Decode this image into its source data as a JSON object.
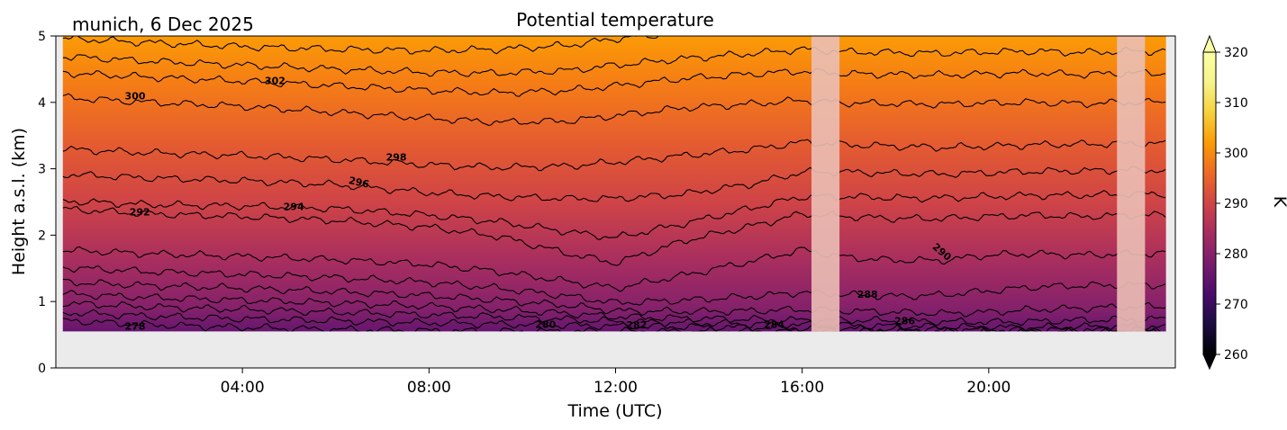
{
  "chart_data": {
    "type": "heatmap",
    "title": "Potential temperature",
    "subtitle": "munich, 6 Dec 2025",
    "xlabel": "Time (UTC)",
    "ylabel": "Height a.s.l. (km)",
    "xlim_hours": [
      0,
      24
    ],
    "ylim": [
      0,
      5
    ],
    "x_ticks": [
      {
        "hour": 4,
        "label": "04:00"
      },
      {
        "hour": 8,
        "label": "08:00"
      },
      {
        "hour": 12,
        "label": "12:00"
      },
      {
        "hour": 16,
        "label": "16:00"
      },
      {
        "hour": 20,
        "label": "20:00"
      }
    ],
    "y_ticks": [
      {
        "value": 0,
        "label": "0"
      },
      {
        "value": 1,
        "label": "1"
      },
      {
        "value": 2,
        "label": "2"
      },
      {
        "value": 3,
        "label": "3"
      },
      {
        "value": 4,
        "label": "4"
      },
      {
        "value": 5,
        "label": "5"
      }
    ],
    "data_start_height_km": 0.55,
    "data_time_range_hours": [
      0.15,
      23.8
    ],
    "missing_data_bands_hours": [
      [
        16.2,
        16.8
      ],
      [
        22.75,
        23.35
      ]
    ],
    "colorbar": {
      "label": "K",
      "range": [
        260,
        320
      ],
      "colormap": "inferno",
      "ticks": [
        {
          "value": 260,
          "label": "260"
        },
        {
          "value": 270,
          "label": "270"
        },
        {
          "value": 280,
          "label": "280"
        },
        {
          "value": 290,
          "label": "290"
        },
        {
          "value": 300,
          "label": "300"
        },
        {
          "value": 310,
          "label": "310"
        },
        {
          "value": 320,
          "label": "320"
        }
      ]
    },
    "contour_levels": [
      278,
      280,
      282,
      284,
      286,
      288,
      290,
      292,
      294,
      296,
      298,
      300,
      302
    ],
    "contour_labels": [
      {
        "text": "278",
        "hour": 1.7,
        "km": 0.63
      },
      {
        "text": "280",
        "hour": 10.5,
        "km": 0.66
      },
      {
        "text": "282",
        "hour": 12.45,
        "km": 0.65
      },
      {
        "text": "284",
        "hour": 15.4,
        "km": 0.66
      },
      {
        "text": "286",
        "hour": 18.2,
        "km": 0.71
      },
      {
        "text": "288",
        "hour": 17.4,
        "km": 1.11
      },
      {
        "text": "290",
        "hour": 19.0,
        "km": 1.75
      },
      {
        "text": "292",
        "hour": 1.8,
        "km": 2.35
      },
      {
        "text": "294",
        "hour": 5.1,
        "km": 2.43
      },
      {
        "text": "296",
        "hour": 6.5,
        "km": 2.8
      },
      {
        "text": "298",
        "hour": 7.3,
        "km": 3.18
      },
      {
        "text": "300",
        "hour": 1.7,
        "km": 4.1
      },
      {
        "text": "302",
        "hour": 4.7,
        "km": 4.33
      }
    ]
  },
  "colors": {
    "missing_band": "#e8a090",
    "missing_band_overlay": "#f2f2f2",
    "no_data_background": "#ebebeb",
    "contour": "#000000"
  }
}
